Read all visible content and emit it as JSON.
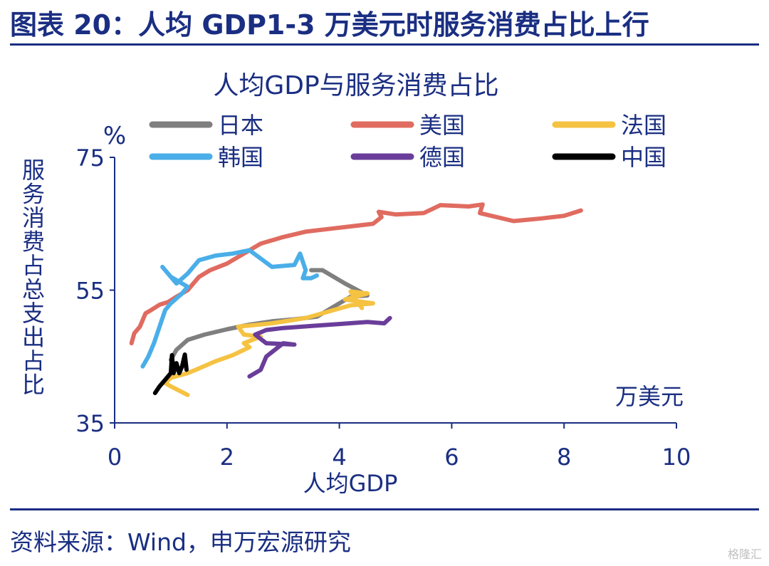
{
  "header": {
    "title": "图表 20：人均 GDP1-3 万美元时服务消费占比上行"
  },
  "source": "资料来源：Wind，申万宏源研究",
  "watermark": "格隆汇",
  "chart_data": {
    "type": "line",
    "title": "人均GDP与服务消费占比",
    "xlabel": "人均GDP",
    "x_unit": "万美元",
    "ylabel": "服务消费占总支出占比",
    "y_unit": "%",
    "xlim": [
      0,
      10
    ],
    "ylim": [
      35,
      75
    ],
    "x_ticks": [
      0,
      2,
      4,
      6,
      8,
      10
    ],
    "y_ticks": [
      35,
      55,
      75
    ],
    "legend": "top",
    "grid": false,
    "series": [
      {
        "name": "日本",
        "color": "#7f7f7f",
        "points": [
          [
            1.0,
            44.5
          ],
          [
            1.1,
            46.0
          ],
          [
            1.3,
            47.5
          ],
          [
            1.6,
            48.3
          ],
          [
            2.0,
            49.1
          ],
          [
            2.4,
            49.8
          ],
          [
            2.8,
            50.3
          ],
          [
            3.2,
            50.6
          ],
          [
            3.6,
            51.0
          ],
          [
            3.8,
            52.0
          ],
          [
            4.0,
            53.0
          ],
          [
            4.2,
            54.0
          ],
          [
            4.5,
            54.2
          ],
          [
            4.1,
            56.0
          ],
          [
            3.7,
            58.0
          ],
          [
            3.5,
            58.0
          ]
        ]
      },
      {
        "name": "美国",
        "color": "#e06b60",
        "points": [
          [
            0.3,
            47.0
          ],
          [
            0.35,
            48.5
          ],
          [
            0.45,
            49.5
          ],
          [
            0.55,
            51.5
          ],
          [
            0.65,
            52.0
          ],
          [
            0.8,
            52.8
          ],
          [
            0.95,
            53.2
          ],
          [
            1.1,
            54.0
          ],
          [
            1.3,
            55.0
          ],
          [
            1.5,
            57.0
          ],
          [
            1.7,
            58.0
          ],
          [
            2.0,
            59.0
          ],
          [
            2.3,
            60.5
          ],
          [
            2.6,
            62.0
          ],
          [
            3.0,
            63.0
          ],
          [
            3.4,
            63.8
          ],
          [
            3.8,
            64.2
          ],
          [
            4.2,
            64.6
          ],
          [
            4.6,
            65.0
          ],
          [
            4.75,
            66.0
          ],
          [
            4.7,
            66.8
          ],
          [
            5.0,
            66.4
          ],
          [
            5.5,
            66.6
          ],
          [
            5.8,
            67.8
          ],
          [
            6.3,
            67.6
          ],
          [
            6.55,
            67.9
          ],
          [
            6.5,
            66.6
          ],
          [
            7.1,
            65.4
          ],
          [
            7.6,
            65.8
          ],
          [
            8.0,
            66.2
          ],
          [
            8.3,
            67.0
          ]
        ]
      },
      {
        "name": "法国",
        "color": "#f5c242",
        "points": [
          [
            1.3,
            39.2
          ],
          [
            1.0,
            40.5
          ],
          [
            0.9,
            41.0
          ],
          [
            1.0,
            41.8
          ],
          [
            1.3,
            42.5
          ],
          [
            1.5,
            43.2
          ],
          [
            1.8,
            44.3
          ],
          [
            2.1,
            45.2
          ],
          [
            2.4,
            46.4
          ],
          [
            2.3,
            47.0
          ],
          [
            2.6,
            48.0
          ],
          [
            2.3,
            48.3
          ],
          [
            2.2,
            49.5
          ],
          [
            2.8,
            50.0
          ],
          [
            3.4,
            50.8
          ],
          [
            3.9,
            52.0
          ],
          [
            4.2,
            52.7
          ],
          [
            4.6,
            53.0
          ],
          [
            4.1,
            53.6
          ],
          [
            4.5,
            54.5
          ],
          [
            4.2,
            54.8
          ],
          [
            4.4,
            52.3
          ]
        ]
      },
      {
        "name": "韩国",
        "color": "#4aaee8",
        "points": [
          [
            0.5,
            43.5
          ],
          [
            0.6,
            45.0
          ],
          [
            0.7,
            47.0
          ],
          [
            0.8,
            49.5
          ],
          [
            0.9,
            52.0
          ],
          [
            1.0,
            53.0
          ],
          [
            1.2,
            54.5
          ],
          [
            1.3,
            55.5
          ],
          [
            1.0,
            57.0
          ],
          [
            0.85,
            58.5
          ],
          [
            1.1,
            56.0
          ],
          [
            1.3,
            57.5
          ],
          [
            1.5,
            59.5
          ],
          [
            1.8,
            60.2
          ],
          [
            2.1,
            60.5
          ],
          [
            2.4,
            61.0
          ],
          [
            2.8,
            58.5
          ],
          [
            3.2,
            58.8
          ],
          [
            3.3,
            60.5
          ],
          [
            3.4,
            58.0
          ],
          [
            3.35,
            56.8
          ],
          [
            3.5,
            56.8
          ],
          [
            3.6,
            57.2
          ]
        ]
      },
      {
        "name": "德国",
        "color": "#6a3d9a",
        "points": [
          [
            2.4,
            42.0
          ],
          [
            2.6,
            43.0
          ],
          [
            2.7,
            45.0
          ],
          [
            3.0,
            47.0
          ],
          [
            3.2,
            46.8
          ],
          [
            2.7,
            47.0
          ],
          [
            2.5,
            48.3
          ],
          [
            2.7,
            49.0
          ],
          [
            3.0,
            49.3
          ],
          [
            3.5,
            49.6
          ],
          [
            4.0,
            49.9
          ],
          [
            4.5,
            50.2
          ],
          [
            4.8,
            50.0
          ],
          [
            4.9,
            50.8
          ]
        ]
      },
      {
        "name": "中国",
        "color": "#000000",
        "points": [
          [
            0.72,
            39.5
          ],
          [
            0.8,
            40.5
          ],
          [
            0.9,
            41.5
          ],
          [
            1.0,
            42.5
          ],
          [
            1.02,
            45.2
          ],
          [
            1.05,
            42.5
          ],
          [
            1.1,
            44.0
          ],
          [
            1.15,
            42.5
          ],
          [
            1.2,
            43.5
          ],
          [
            1.25,
            45.3
          ],
          [
            1.28,
            43.0
          ]
        ]
      }
    ]
  }
}
